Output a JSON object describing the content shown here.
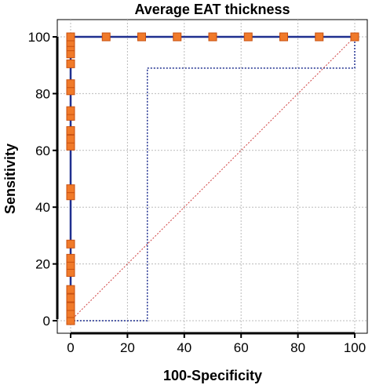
{
  "chart_data": {
    "type": "line",
    "title": "Average EAT thickness",
    "xlabel": "100-Specificity",
    "ylabel": "Sensitivity",
    "xlim": [
      0,
      100
    ],
    "ylim": [
      0,
      100
    ],
    "x_ticks": [
      "0",
      "20",
      "40",
      "60",
      "80",
      "100"
    ],
    "y_ticks": [
      "0",
      "20",
      "40",
      "60",
      "80",
      "100"
    ],
    "grid": true,
    "colors": {
      "roc": "#1f2f8f",
      "reference": "#d04040",
      "marker_fill": "#f07a2a",
      "marker_stroke": "#c85010",
      "grid": "#bbbbbb"
    },
    "series": [
      {
        "style": "solid",
        "x": [
          0,
          0,
          100
        ],
        "y": [
          0,
          100,
          100
        ]
      },
      {
        "style": "dotted",
        "x": [
          0,
          27,
          27,
          100,
          100
        ],
        "y": [
          0,
          0,
          89,
          89,
          100
        ]
      },
      {
        "style": "reference",
        "x": [
          0,
          100
        ],
        "y": [
          0,
          100
        ]
      }
    ],
    "markers": {
      "x": [
        0,
        0,
        0,
        0,
        0,
        0,
        0,
        0,
        0,
        0,
        0,
        0,
        0,
        0,
        0,
        0,
        0,
        0,
        0,
        0,
        0,
        0,
        0,
        0,
        0,
        0,
        12.5,
        25,
        37.5,
        50,
        62.5,
        75,
        87.5,
        100
      ],
      "y": [
        0,
        2.5,
        5,
        8,
        11,
        17,
        19.5,
        22,
        27,
        44,
        46.5,
        61.5,
        64,
        67,
        72,
        74,
        81,
        83.5,
        90.5,
        94,
        96.5,
        98,
        100,
        100,
        100,
        100,
        100,
        100,
        100,
        100,
        100,
        100,
        100,
        100
      ]
    }
  }
}
